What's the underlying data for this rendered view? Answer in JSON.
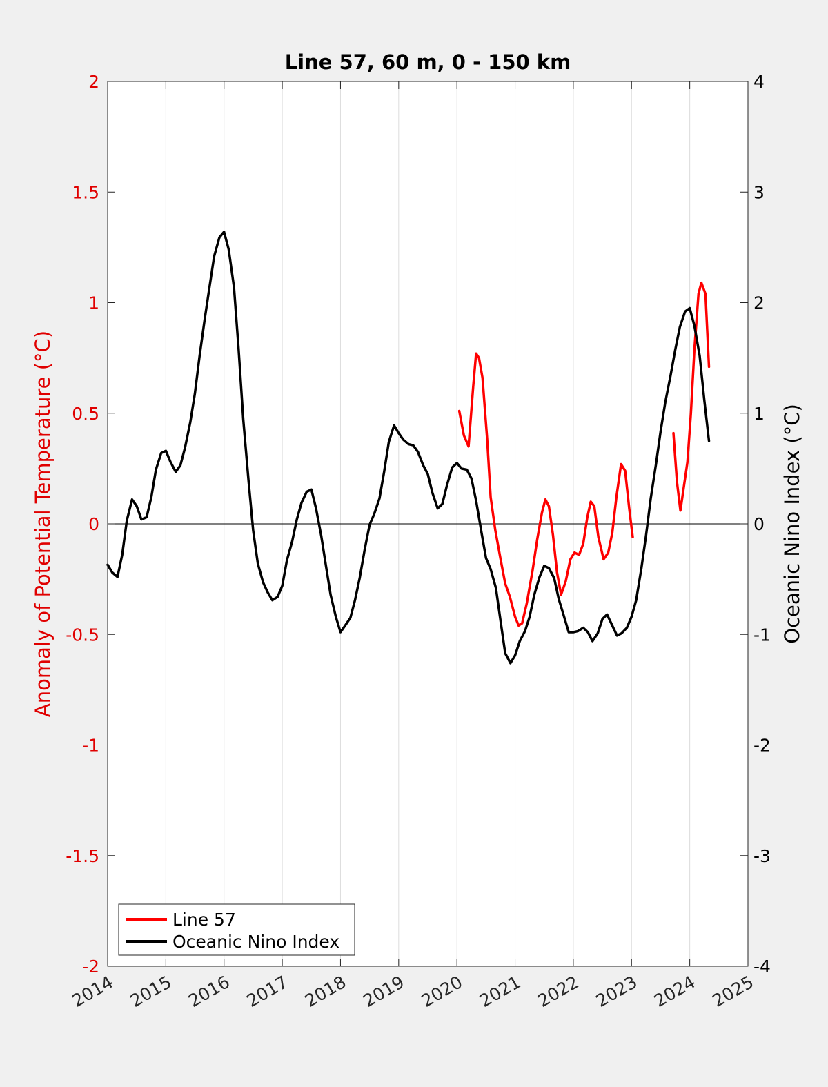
{
  "chart_data": {
    "type": "line",
    "title": "Line 57, 60 m, 0 - 150 km",
    "ylabel_left": "Anomaly of Potential Temperature (°C)",
    "ylabel_right": "Oceanic Nino Index (°C)",
    "xlim": [
      2014,
      2025
    ],
    "ylim_left": [
      -2,
      2
    ],
    "ylim_right": [
      -4,
      4
    ],
    "x_ticks": [
      "2014",
      "2015",
      "2016",
      "2017",
      "2018",
      "2019",
      "2020",
      "2021",
      "2022",
      "2023",
      "2024",
      "2025"
    ],
    "y_left_ticks": [
      "2",
      "1.5",
      "1",
      "0.5",
      "0",
      "-0.5",
      "-1",
      "-1.5",
      "-2"
    ],
    "y_right_ticks": [
      "4",
      "3",
      "2",
      "1",
      "0",
      "-1",
      "-2",
      "-3",
      "-4"
    ],
    "grid": "vertical",
    "zero_line": true,
    "legend_position": "bottom-left",
    "colors": {
      "line57": "#ff0000",
      "oni": "#000000",
      "left_axis": "#e00000",
      "right_axis": "#000000"
    },
    "series": [
      {
        "name": "Line 57",
        "axis": "left",
        "color": "#ff0000",
        "segments": [
          [
            [
              2020.04,
              0.51
            ],
            [
              2020.12,
              0.4
            ],
            [
              2020.2,
              0.35
            ],
            [
              2020.28,
              0.62
            ],
            [
              2020.33,
              0.77
            ],
            [
              2020.38,
              0.75
            ],
            [
              2020.44,
              0.66
            ],
            [
              2020.52,
              0.38
            ],
            [
              2020.58,
              0.12
            ],
            [
              2020.66,
              -0.03
            ],
            [
              2020.75,
              -0.16
            ],
            [
              2020.83,
              -0.27
            ],
            [
              2020.91,
              -0.33
            ],
            [
              2021.0,
              -0.42
            ],
            [
              2021.06,
              -0.46
            ],
            [
              2021.12,
              -0.45
            ],
            [
              2021.2,
              -0.36
            ],
            [
              2021.3,
              -0.21
            ],
            [
              2021.38,
              -0.07
            ],
            [
              2021.46,
              0.05
            ],
            [
              2021.52,
              0.11
            ],
            [
              2021.58,
              0.08
            ],
            [
              2021.65,
              -0.05
            ],
            [
              2021.72,
              -0.22
            ],
            [
              2021.79,
              -0.32
            ],
            [
              2021.87,
              -0.26
            ],
            [
              2021.95,
              -0.16
            ],
            [
              2022.02,
              -0.13
            ],
            [
              2022.1,
              -0.14
            ],
            [
              2022.17,
              -0.09
            ],
            [
              2022.24,
              0.03
            ],
            [
              2022.3,
              0.1
            ],
            [
              2022.36,
              0.08
            ],
            [
              2022.43,
              -0.06
            ],
            [
              2022.52,
              -0.16
            ],
            [
              2022.6,
              -0.13
            ],
            [
              2022.67,
              -0.04
            ],
            [
              2022.74,
              0.12
            ],
            [
              2022.82,
              0.27
            ],
            [
              2022.89,
              0.24
            ],
            [
              2022.96,
              0.07
            ],
            [
              2023.02,
              -0.06
            ]
          ],
          [
            [
              2023.72,
              0.41
            ],
            [
              2023.78,
              0.19
            ],
            [
              2023.84,
              0.06
            ],
            [
              2023.9,
              0.17
            ],
            [
              2023.96,
              0.28
            ],
            [
              2024.02,
              0.5
            ],
            [
              2024.08,
              0.79
            ],
            [
              2024.15,
              1.04
            ],
            [
              2024.2,
              1.09
            ],
            [
              2024.27,
              1.04
            ],
            [
              2024.33,
              0.71
            ]
          ]
        ]
      },
      {
        "name": "Oceanic Nino Index",
        "axis": "right",
        "color": "#000000",
        "points": [
          [
            2014.0,
            -0.37
          ],
          [
            2014.08,
            -0.44
          ],
          [
            2014.17,
            -0.48
          ],
          [
            2014.25,
            -0.28
          ],
          [
            2014.33,
            0.03
          ],
          [
            2014.42,
            0.22
          ],
          [
            2014.5,
            0.16
          ],
          [
            2014.58,
            0.04
          ],
          [
            2014.67,
            0.06
          ],
          [
            2014.75,
            0.24
          ],
          [
            2014.83,
            0.49
          ],
          [
            2014.92,
            0.64
          ],
          [
            2015.0,
            0.66
          ],
          [
            2015.08,
            0.56
          ],
          [
            2015.17,
            0.47
          ],
          [
            2015.25,
            0.53
          ],
          [
            2015.33,
            0.69
          ],
          [
            2015.42,
            0.92
          ],
          [
            2015.5,
            1.18
          ],
          [
            2015.58,
            1.52
          ],
          [
            2015.67,
            1.86
          ],
          [
            2015.75,
            2.14
          ],
          [
            2015.83,
            2.42
          ],
          [
            2015.92,
            2.59
          ],
          [
            2016.0,
            2.64
          ],
          [
            2016.08,
            2.48
          ],
          [
            2016.17,
            2.14
          ],
          [
            2016.25,
            1.58
          ],
          [
            2016.33,
            0.94
          ],
          [
            2016.42,
            0.39
          ],
          [
            2016.5,
            -0.06
          ],
          [
            2016.58,
            -0.36
          ],
          [
            2016.67,
            -0.53
          ],
          [
            2016.75,
            -0.62
          ],
          [
            2016.83,
            -0.69
          ],
          [
            2016.92,
            -0.66
          ],
          [
            2017.0,
            -0.56
          ],
          [
            2017.08,
            -0.33
          ],
          [
            2017.17,
            -0.16
          ],
          [
            2017.25,
            0.04
          ],
          [
            2017.33,
            0.19
          ],
          [
            2017.42,
            0.29
          ],
          [
            2017.5,
            0.31
          ],
          [
            2017.58,
            0.14
          ],
          [
            2017.67,
            -0.11
          ],
          [
            2017.75,
            -0.38
          ],
          [
            2017.83,
            -0.64
          ],
          [
            2017.92,
            -0.84
          ],
          [
            2018.0,
            -0.98
          ],
          [
            2018.08,
            -0.92
          ],
          [
            2018.17,
            -0.85
          ],
          [
            2018.25,
            -0.69
          ],
          [
            2018.33,
            -0.49
          ],
          [
            2018.42,
            -0.22
          ],
          [
            2018.5,
            -0.01
          ],
          [
            2018.58,
            0.09
          ],
          [
            2018.67,
            0.23
          ],
          [
            2018.75,
            0.47
          ],
          [
            2018.83,
            0.74
          ],
          [
            2018.92,
            0.89
          ],
          [
            2019.0,
            0.82
          ],
          [
            2019.08,
            0.76
          ],
          [
            2019.17,
            0.72
          ],
          [
            2019.25,
            0.71
          ],
          [
            2019.33,
            0.65
          ],
          [
            2019.42,
            0.53
          ],
          [
            2019.5,
            0.45
          ],
          [
            2019.58,
            0.28
          ],
          [
            2019.67,
            0.14
          ],
          [
            2019.75,
            0.18
          ],
          [
            2019.83,
            0.35
          ],
          [
            2019.92,
            0.51
          ],
          [
            2020.0,
            0.55
          ],
          [
            2020.08,
            0.5
          ],
          [
            2020.17,
            0.49
          ],
          [
            2020.25,
            0.41
          ],
          [
            2020.33,
            0.21
          ],
          [
            2020.42,
            -0.07
          ],
          [
            2020.5,
            -0.31
          ],
          [
            2020.58,
            -0.41
          ],
          [
            2020.67,
            -0.58
          ],
          [
            2020.75,
            -0.88
          ],
          [
            2020.83,
            -1.17
          ],
          [
            2020.92,
            -1.26
          ],
          [
            2021.0,
            -1.19
          ],
          [
            2021.08,
            -1.06
          ],
          [
            2021.17,
            -0.97
          ],
          [
            2021.25,
            -0.84
          ],
          [
            2021.33,
            -0.64
          ],
          [
            2021.42,
            -0.48
          ],
          [
            2021.5,
            -0.38
          ],
          [
            2021.58,
            -0.4
          ],
          [
            2021.67,
            -0.49
          ],
          [
            2021.75,
            -0.68
          ],
          [
            2021.83,
            -0.82
          ],
          [
            2021.92,
            -0.98
          ],
          [
            2022.0,
            -0.98
          ],
          [
            2022.08,
            -0.97
          ],
          [
            2022.17,
            -0.94
          ],
          [
            2022.25,
            -0.98
          ],
          [
            2022.33,
            -1.06
          ],
          [
            2022.42,
            -0.99
          ],
          [
            2022.5,
            -0.86
          ],
          [
            2022.58,
            -0.82
          ],
          [
            2022.67,
            -0.92
          ],
          [
            2022.75,
            -1.01
          ],
          [
            2022.83,
            -0.99
          ],
          [
            2022.92,
            -0.94
          ],
          [
            2023.0,
            -0.84
          ],
          [
            2023.08,
            -0.69
          ],
          [
            2023.17,
            -0.4
          ],
          [
            2023.25,
            -0.1
          ],
          [
            2023.33,
            0.23
          ],
          [
            2023.42,
            0.54
          ],
          [
            2023.5,
            0.84
          ],
          [
            2023.58,
            1.1
          ],
          [
            2023.67,
            1.34
          ],
          [
            2023.75,
            1.57
          ],
          [
            2023.83,
            1.78
          ],
          [
            2023.92,
            1.92
          ],
          [
            2024.0,
            1.95
          ],
          [
            2024.08,
            1.79
          ],
          [
            2024.17,
            1.52
          ],
          [
            2024.25,
            1.12
          ],
          [
            2024.33,
            0.75
          ]
        ]
      }
    ]
  }
}
